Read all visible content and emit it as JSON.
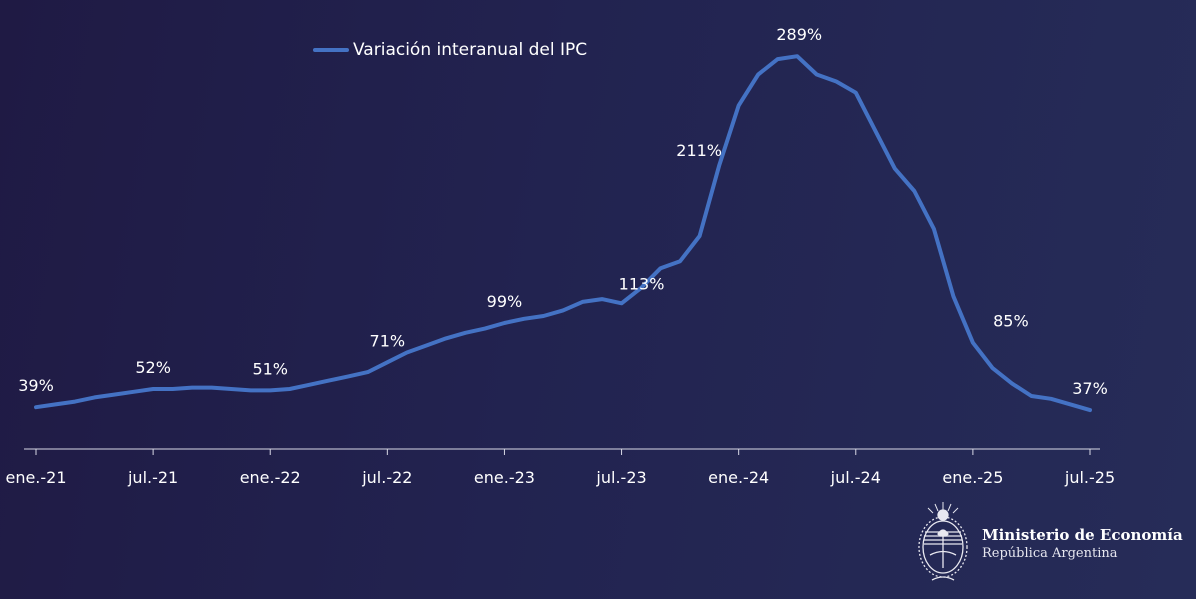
{
  "legend": {
    "label": "Variación interanual del IPC",
    "color": "#4472c4"
  },
  "branding": {
    "title": "Ministerio de Economía",
    "subtitle": "República Argentina",
    "icon": "coat-of-arms-icon"
  },
  "colors": {
    "line": "#4472c4",
    "axis": "#d9d9e6",
    "text": "#ffffff",
    "background": "#222350"
  },
  "chart_data": {
    "type": "line",
    "title": "",
    "xlabel": "",
    "ylabel": "",
    "grid": false,
    "legend_position": "top",
    "x_tick_labels": [
      "ene.-21",
      "jul.-21",
      "ene.-22",
      "jul.-22",
      "ene.-23",
      "jul.-23",
      "ene.-24",
      "jul.-24",
      "ene.-25",
      "jul.-25"
    ],
    "x": [
      "ene.-21",
      "feb.-21",
      "mar.-21",
      "abr.-21",
      "may.-21",
      "jun.-21",
      "jul.-21",
      "ago.-21",
      "sep.-21",
      "oct.-21",
      "nov.-21",
      "dic.-21",
      "ene.-22",
      "feb.-22",
      "mar.-22",
      "abr.-22",
      "may.-22",
      "jun.-22",
      "jul.-22",
      "ago.-22",
      "sep.-22",
      "oct.-22",
      "nov.-22",
      "dic.-22",
      "ene.-23",
      "feb.-23",
      "mar.-23",
      "abr.-23",
      "may.-23",
      "jun.-23",
      "jul.-23",
      "ago.-23",
      "sep.-23",
      "oct.-23",
      "nov.-23",
      "dic.-23",
      "ene.-24",
      "feb.-24",
      "mar.-24",
      "abr.-24",
      "may.-24",
      "jun.-24",
      "jul.-24",
      "ago.-24",
      "sep.-24",
      "oct.-24",
      "nov.-24",
      "dic.-24",
      "ene.-25",
      "feb.-25",
      "mar.-25",
      "abr.-25",
      "may.-25",
      "jun.-25",
      "jul.-25"
    ],
    "series": [
      {
        "name": "Variación interanual del IPC",
        "values": [
          39,
          41,
          43,
          46,
          48,
          50,
          52,
          52,
          53,
          53,
          52,
          51,
          51,
          52,
          55,
          58,
          61,
          64,
          71,
          78,
          83,
          88,
          92,
          95,
          99,
          102,
          104,
          108,
          114,
          116,
          113,
          124,
          138,
          143,
          161,
          211,
          254,
          276,
          287,
          289,
          276,
          271,
          263,
          236,
          209,
          193,
          166,
          118,
          85,
          67,
          56,
          47,
          45,
          41,
          37
        ]
      }
    ],
    "data_labels": [
      {
        "x": "ene.-21",
        "label": "39%"
      },
      {
        "x": "jul.-21",
        "label": "52%"
      },
      {
        "x": "ene.-22",
        "label": "51%"
      },
      {
        "x": "jul.-22",
        "label": "71%"
      },
      {
        "x": "ene.-23",
        "label": "99%"
      },
      {
        "x": "jul.-23",
        "label": "113%"
      },
      {
        "x": "dic.-23",
        "label": "211%"
      },
      {
        "x": "abr.-24",
        "label": "289%"
      },
      {
        "x": "ene.-25",
        "label": "85%"
      },
      {
        "x": "jul.-25",
        "label": "37%"
      }
    ],
    "ylim": [
      0,
      300
    ]
  }
}
